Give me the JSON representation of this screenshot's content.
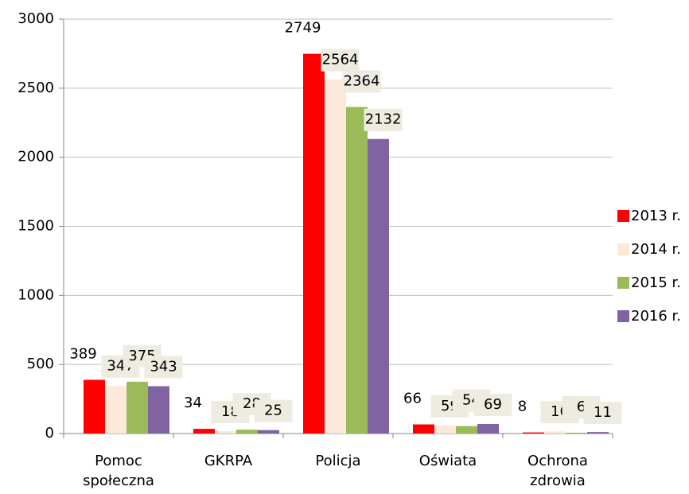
{
  "chart_data": {
    "type": "bar",
    "categories": [
      "Pomoc społeczna",
      "GKRPA",
      "Policja",
      "Oświata",
      "Ochrona zdrowia"
    ],
    "series": [
      {
        "name": "2013 r.",
        "color": "#ff0000",
        "values": [
          389,
          34,
          2749,
          66,
          8
        ]
      },
      {
        "name": "2014 r.",
        "color": "#fde9d9",
        "values": [
          347,
          18,
          2564,
          59,
          16
        ]
      },
      {
        "name": "2015 r.",
        "color": "#9bbb59",
        "values": [
          375,
          28,
          2364,
          54,
          6
        ]
      },
      {
        "name": "2016 r.",
        "color": "#8064a2",
        "values": [
          343,
          25,
          2132,
          69,
          11
        ]
      }
    ],
    "ylim": [
      0,
      3000
    ],
    "yticks": [
      0,
      500,
      1000,
      1500,
      2000,
      2500,
      3000
    ],
    "grid": true,
    "legend": "right"
  }
}
